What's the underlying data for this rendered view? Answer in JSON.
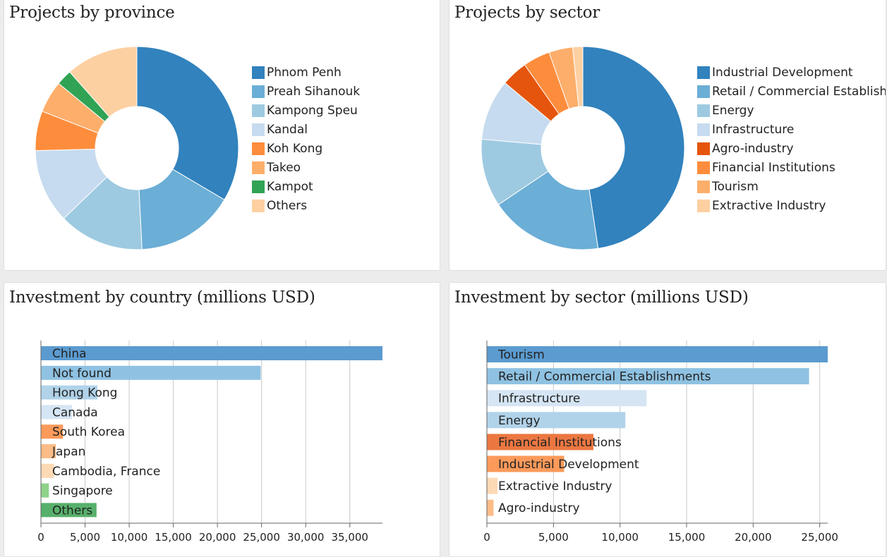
{
  "chart_data": [
    {
      "type": "pie",
      "title": "Projects by province",
      "donut": true,
      "legend_position": "right",
      "slices": [
        {
          "label": "Phnom Penh",
          "value": 33.5,
          "color": "#3182bd"
        },
        {
          "label": "Preah Sihanouk",
          "value": 15.7,
          "color": "#6baed6"
        },
        {
          "label": "Kampong Speu",
          "value": 13.6,
          "color": "#9ecae1"
        },
        {
          "label": "Kandal",
          "value": 11.8,
          "color": "#c6dbef"
        },
        {
          "label": "Koh Kong",
          "value": 6.3,
          "color": "#fd8d3c"
        },
        {
          "label": "Takeo",
          "value": 5.1,
          "color": "#fdae6b"
        },
        {
          "label": "Kampot",
          "value": 2.5,
          "color": "#31a354"
        },
        {
          "label": "Others",
          "value": 11.5,
          "color": "#fdd0a2"
        }
      ]
    },
    {
      "type": "pie",
      "title": "Projects by sector",
      "donut": true,
      "legend_position": "right",
      "slices": [
        {
          "label": "Industrial Development",
          "value": 47.6,
          "color": "#3182bd"
        },
        {
          "label": "Retail / Commercial Establishments",
          "value": 18.0,
          "color": "#6baed6"
        },
        {
          "label": "Energy",
          "value": 10.8,
          "color": "#9ecae1"
        },
        {
          "label": "Infrastructure",
          "value": 9.7,
          "color": "#c6dbef"
        },
        {
          "label": "Agro-industry",
          "value": 4.2,
          "color": "#e6550d"
        },
        {
          "label": "Financial Institutions",
          "value": 4.3,
          "color": "#fd8d3c"
        },
        {
          "label": "Tourism",
          "value": 3.8,
          "color": "#fdae6b"
        },
        {
          "label": "Extractive Industry",
          "value": 1.6,
          "color": "#fdd0a2"
        }
      ]
    },
    {
      "type": "bar",
      "orientation": "horizontal",
      "title": "Investment by country (millions USD)",
      "xlim": [
        0,
        38700
      ],
      "ticks": [
        0,
        5000,
        10000,
        15000,
        20000,
        25000,
        30000,
        35000
      ],
      "tick_labels": [
        "0",
        "5,000",
        "10,000",
        "15,000",
        "20,000",
        "25,000",
        "30,000",
        "35,000"
      ],
      "grid": true,
      "bars": [
        {
          "label": "China",
          "value": 38700,
          "color": "#5b9bd0"
        },
        {
          "label": "Not found",
          "value": 24900,
          "color": "#8fc2e2"
        },
        {
          "label": "Hong Kong",
          "value": 6400,
          "color": "#b1d3e9"
        },
        {
          "label": "Canada",
          "value": 3500,
          "color": "#d5e5f4"
        },
        {
          "label": "South Korea",
          "value": 2500,
          "color": "#fb9a5a"
        },
        {
          "label": "Japan",
          "value": 1700,
          "color": "#fcbc87"
        },
        {
          "label": "Cambodia, France",
          "value": 1500,
          "color": "#fdd9b5"
        },
        {
          "label": "Singapore",
          "value": 900,
          "color": "#8ed28a"
        },
        {
          "label": "Others",
          "value": 6300,
          "color": "#57b06b"
        }
      ]
    },
    {
      "type": "bar",
      "orientation": "horizontal",
      "title": "Investment by sector (millions USD)",
      "xlim": [
        0,
        25600
      ],
      "ticks": [
        0,
        5000,
        10000,
        15000,
        20000,
        25000
      ],
      "tick_labels": [
        "0",
        "5,000",
        "10,000",
        "15,000",
        "20,000",
        "25,000"
      ],
      "grid": true,
      "bars": [
        {
          "label": "Tourism",
          "value": 25600,
          "color": "#5b9bd0"
        },
        {
          "label": "Retail / Commercial Establishments",
          "value": 24200,
          "color": "#8fc2e2"
        },
        {
          "label": "Infrastructure",
          "value": 12000,
          "color": "#d5e5f4"
        },
        {
          "label": "Energy",
          "value": 10400,
          "color": "#b1d3e9"
        },
        {
          "label": "Financial Institutions",
          "value": 8000,
          "color": "#ec7741"
        },
        {
          "label": "Industrial Development",
          "value": 5800,
          "color": "#fb9a5a"
        },
        {
          "label": "Extractive Industry",
          "value": 800,
          "color": "#fdd9b5"
        },
        {
          "label": "Agro-industry",
          "value": 500,
          "color": "#fcbc87"
        }
      ]
    }
  ]
}
